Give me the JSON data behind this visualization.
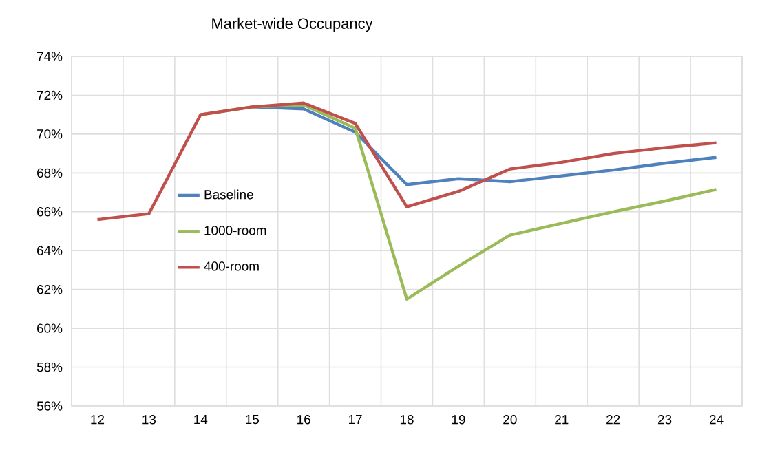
{
  "chart_data": {
    "type": "line",
    "title": "Market-wide Occupancy",
    "categories": [
      "12",
      "13",
      "14",
      "15",
      "16",
      "17",
      "18",
      "19",
      "20",
      "21",
      "22",
      "23",
      "24"
    ],
    "series": [
      {
        "name": "Baseline",
        "color": "#4f81bd",
        "values": [
          null,
          null,
          null,
          71.4,
          71.3,
          70.1,
          67.4,
          67.7,
          67.55,
          67.85,
          68.15,
          68.5,
          68.8
        ]
      },
      {
        "name": "1000-room",
        "color": "#9bbb59",
        "values": [
          null,
          null,
          71.0,
          71.4,
          71.5,
          70.3,
          61.5,
          63.2,
          64.8,
          65.4,
          66.0,
          66.55,
          67.15
        ]
      },
      {
        "name": "400-room",
        "color": "#c0504d",
        "values": [
          65.6,
          65.9,
          71.0,
          71.4,
          71.6,
          70.55,
          66.25,
          67.05,
          68.2,
          68.55,
          69.0,
          69.3,
          69.55
        ]
      }
    ],
    "ylim": [
      56,
      74
    ],
    "yticks": [
      {
        "value": 56,
        "label": "56%"
      },
      {
        "value": 58,
        "label": "58%"
      },
      {
        "value": 60,
        "label": "60%"
      },
      {
        "value": 62,
        "label": "62%"
      },
      {
        "value": 64,
        "label": "64%"
      },
      {
        "value": 66,
        "label": "66%"
      },
      {
        "value": 68,
        "label": "68%"
      },
      {
        "value": 70,
        "label": "70%"
      },
      {
        "value": 72,
        "label": "72%"
      },
      {
        "value": 74,
        "label": "74%"
      }
    ],
    "grid": true,
    "legend": "left",
    "marker": "none",
    "line_style": "solid"
  }
}
